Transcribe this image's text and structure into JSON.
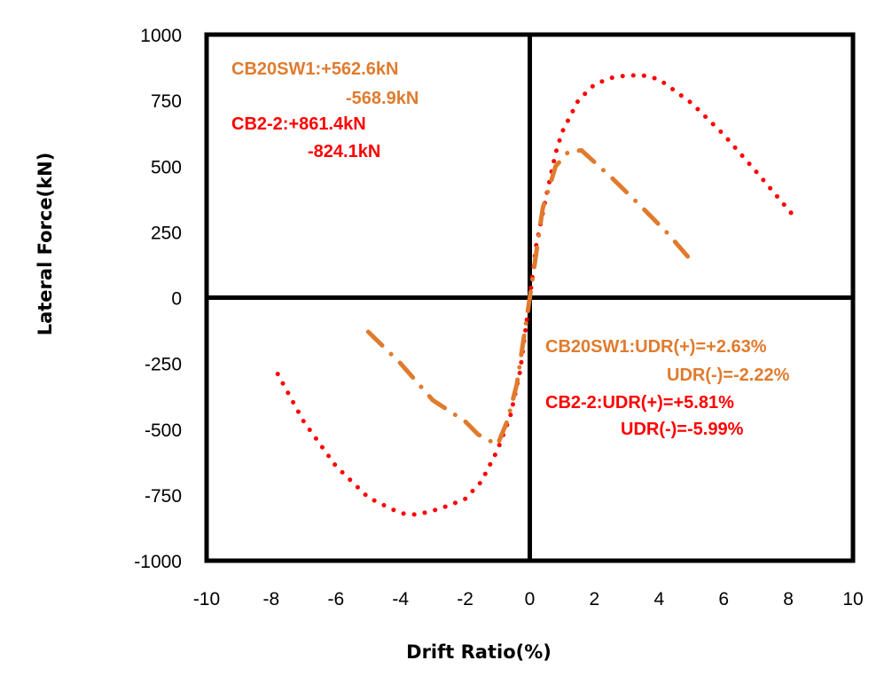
{
  "chart_data": {
    "type": "scatter",
    "title": "",
    "xlabel": "Drift Ratio(%)",
    "ylabel": "Lateral Force(kN)",
    "xlim": [
      -10,
      10
    ],
    "ylim": [
      -1000,
      1000
    ],
    "x_ticks": [
      -10,
      -8,
      -6,
      -4,
      -2,
      0,
      2,
      4,
      6,
      8,
      10
    ],
    "y_ticks": [
      -1000,
      -750,
      -500,
      -250,
      0,
      250,
      500,
      750,
      1000
    ],
    "grid": false,
    "legend": "none",
    "series": [
      {
        "name": "CB2-2",
        "color": "#ff0000",
        "style": "dotted",
        "points": [
          [
            -7.8,
            -290
          ],
          [
            -7.0,
            -470
          ],
          [
            -6.0,
            -640
          ],
          [
            -5.0,
            -760
          ],
          [
            -4.0,
            -820
          ],
          [
            -3.5,
            -825
          ],
          [
            -3.0,
            -810
          ],
          [
            -2.5,
            -790
          ],
          [
            -2.0,
            -765
          ],
          [
            -1.5,
            -700
          ],
          [
            -1.0,
            -580
          ],
          [
            -0.6,
            -450
          ],
          [
            -0.3,
            -280
          ],
          [
            0.0,
            0
          ],
          [
            0.2,
            200
          ],
          [
            0.5,
            380
          ],
          [
            0.8,
            550
          ],
          [
            1.0,
            630
          ],
          [
            1.5,
            750
          ],
          [
            2.0,
            810
          ],
          [
            2.5,
            835
          ],
          [
            3.0,
            845
          ],
          [
            3.5,
            845
          ],
          [
            4.0,
            830
          ],
          [
            5.0,
            740
          ],
          [
            6.0,
            620
          ],
          [
            7.0,
            480
          ],
          [
            8.1,
            320
          ]
        ]
      },
      {
        "name": "CB20SW1",
        "color": "#e07b2e",
        "style": "dash-dot",
        "points": [
          [
            -5.0,
            -130
          ],
          [
            -4.0,
            -250
          ],
          [
            -3.0,
            -390
          ],
          [
            -2.0,
            -470
          ],
          [
            -1.6,
            -520
          ],
          [
            -1.0,
            -560
          ],
          [
            -0.7,
            -470
          ],
          [
            -0.4,
            -330
          ],
          [
            0.0,
            0
          ],
          [
            0.4,
            340
          ],
          [
            0.8,
            500
          ],
          [
            1.2,
            555
          ],
          [
            1.6,
            560
          ],
          [
            2.5,
            460
          ],
          [
            3.5,
            340
          ],
          [
            4.3,
            240
          ],
          [
            5.0,
            140
          ]
        ]
      }
    ],
    "annotations": {
      "force_orange_1": "CB20SW1:+562.6kN",
      "force_orange_2": "-568.9kN",
      "force_red_1": "CB2-2:+861.4kN",
      "force_red_2": "-824.1kN",
      "udr_orange_1": "CB20SW1:UDR(+)=+2.63%",
      "udr_orange_2": "UDR(-)=-2.22%",
      "udr_red_1": "CB2-2:UDR(+)=+5.81%",
      "udr_red_2": "UDR(-)=-5.99%"
    }
  }
}
